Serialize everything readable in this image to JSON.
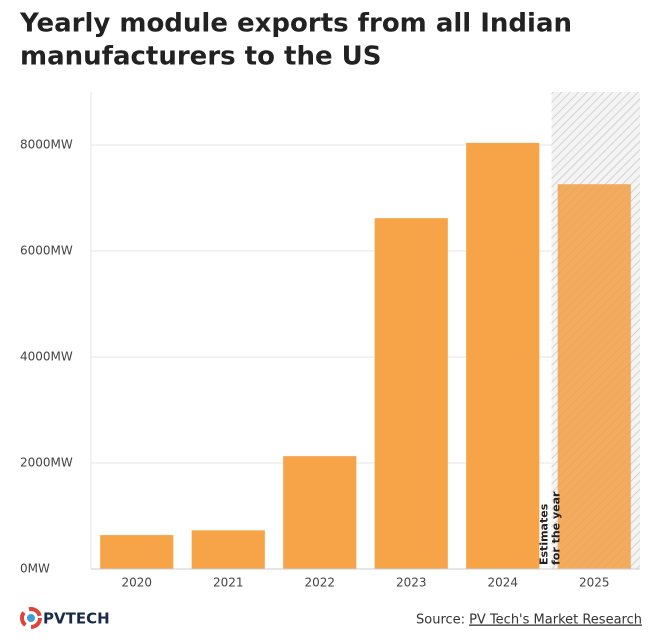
{
  "chart_data": {
    "type": "bar",
    "title": [
      "Yearly module exports from all Indian",
      "manufacturers to the US"
    ],
    "categories": [
      "2020",
      "2021",
      "2022",
      "2023",
      "2024",
      "2025"
    ],
    "values": [
      640,
      730,
      2130,
      6620,
      8040,
      7260
    ],
    "color": "#f7a449",
    "estimate_color": "#f29e45",
    "ylim": [
      0,
      9000
    ],
    "yticks": [
      {
        "value": 0,
        "label": "0MW"
      },
      {
        "value": 2000,
        "label": "2000MW"
      },
      {
        "value": 4000,
        "label": "4000MW"
      },
      {
        "value": 6000,
        "label": "6000MW"
      },
      {
        "value": 8000,
        "label": "8000MW"
      }
    ],
    "grid": true,
    "annotation": [
      "Estimates",
      "for the year"
    ],
    "source_prefix": "Source:",
    "source_link": "PV Tech's Market Research",
    "logo": "PVTECH"
  }
}
